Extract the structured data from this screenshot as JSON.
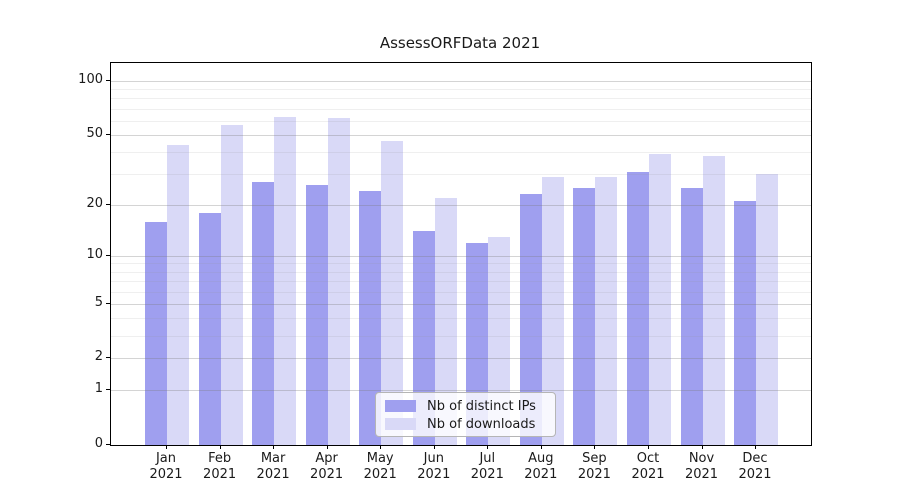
{
  "chart_data": {
    "type": "bar",
    "title": "AssessORFData 2021",
    "x_categories": [
      "Jan",
      "Feb",
      "Mar",
      "Apr",
      "May",
      "Jun",
      "Jul",
      "Aug",
      "Sep",
      "Oct",
      "Nov",
      "Dec"
    ],
    "x_year": "2021",
    "series": [
      {
        "name": "Nb of distinct IPs",
        "color": "#9f9fef",
        "values": [
          16,
          18,
          27,
          26,
          24,
          14,
          12,
          23,
          25,
          31,
          25,
          21
        ]
      },
      {
        "name": "Nb of downloads",
        "color": "#d9d9f7",
        "values": [
          44,
          57,
          63,
          62,
          46,
          22,
          13,
          29,
          29,
          39,
          38,
          30
        ]
      }
    ],
    "y_scale": "log1p",
    "y_major_ticks": [
      0,
      1,
      2,
      5,
      10,
      20,
      50,
      100
    ],
    "y_minor_ticks": [
      3,
      4,
      6,
      7,
      8,
      9,
      30,
      40,
      60,
      70,
      80,
      90
    ],
    "ylim": [
      0,
      126
    ],
    "grid": true,
    "legend_position": "bottom-center",
    "colors": {
      "axis": "#000000",
      "background": "#ffffff"
    }
  }
}
